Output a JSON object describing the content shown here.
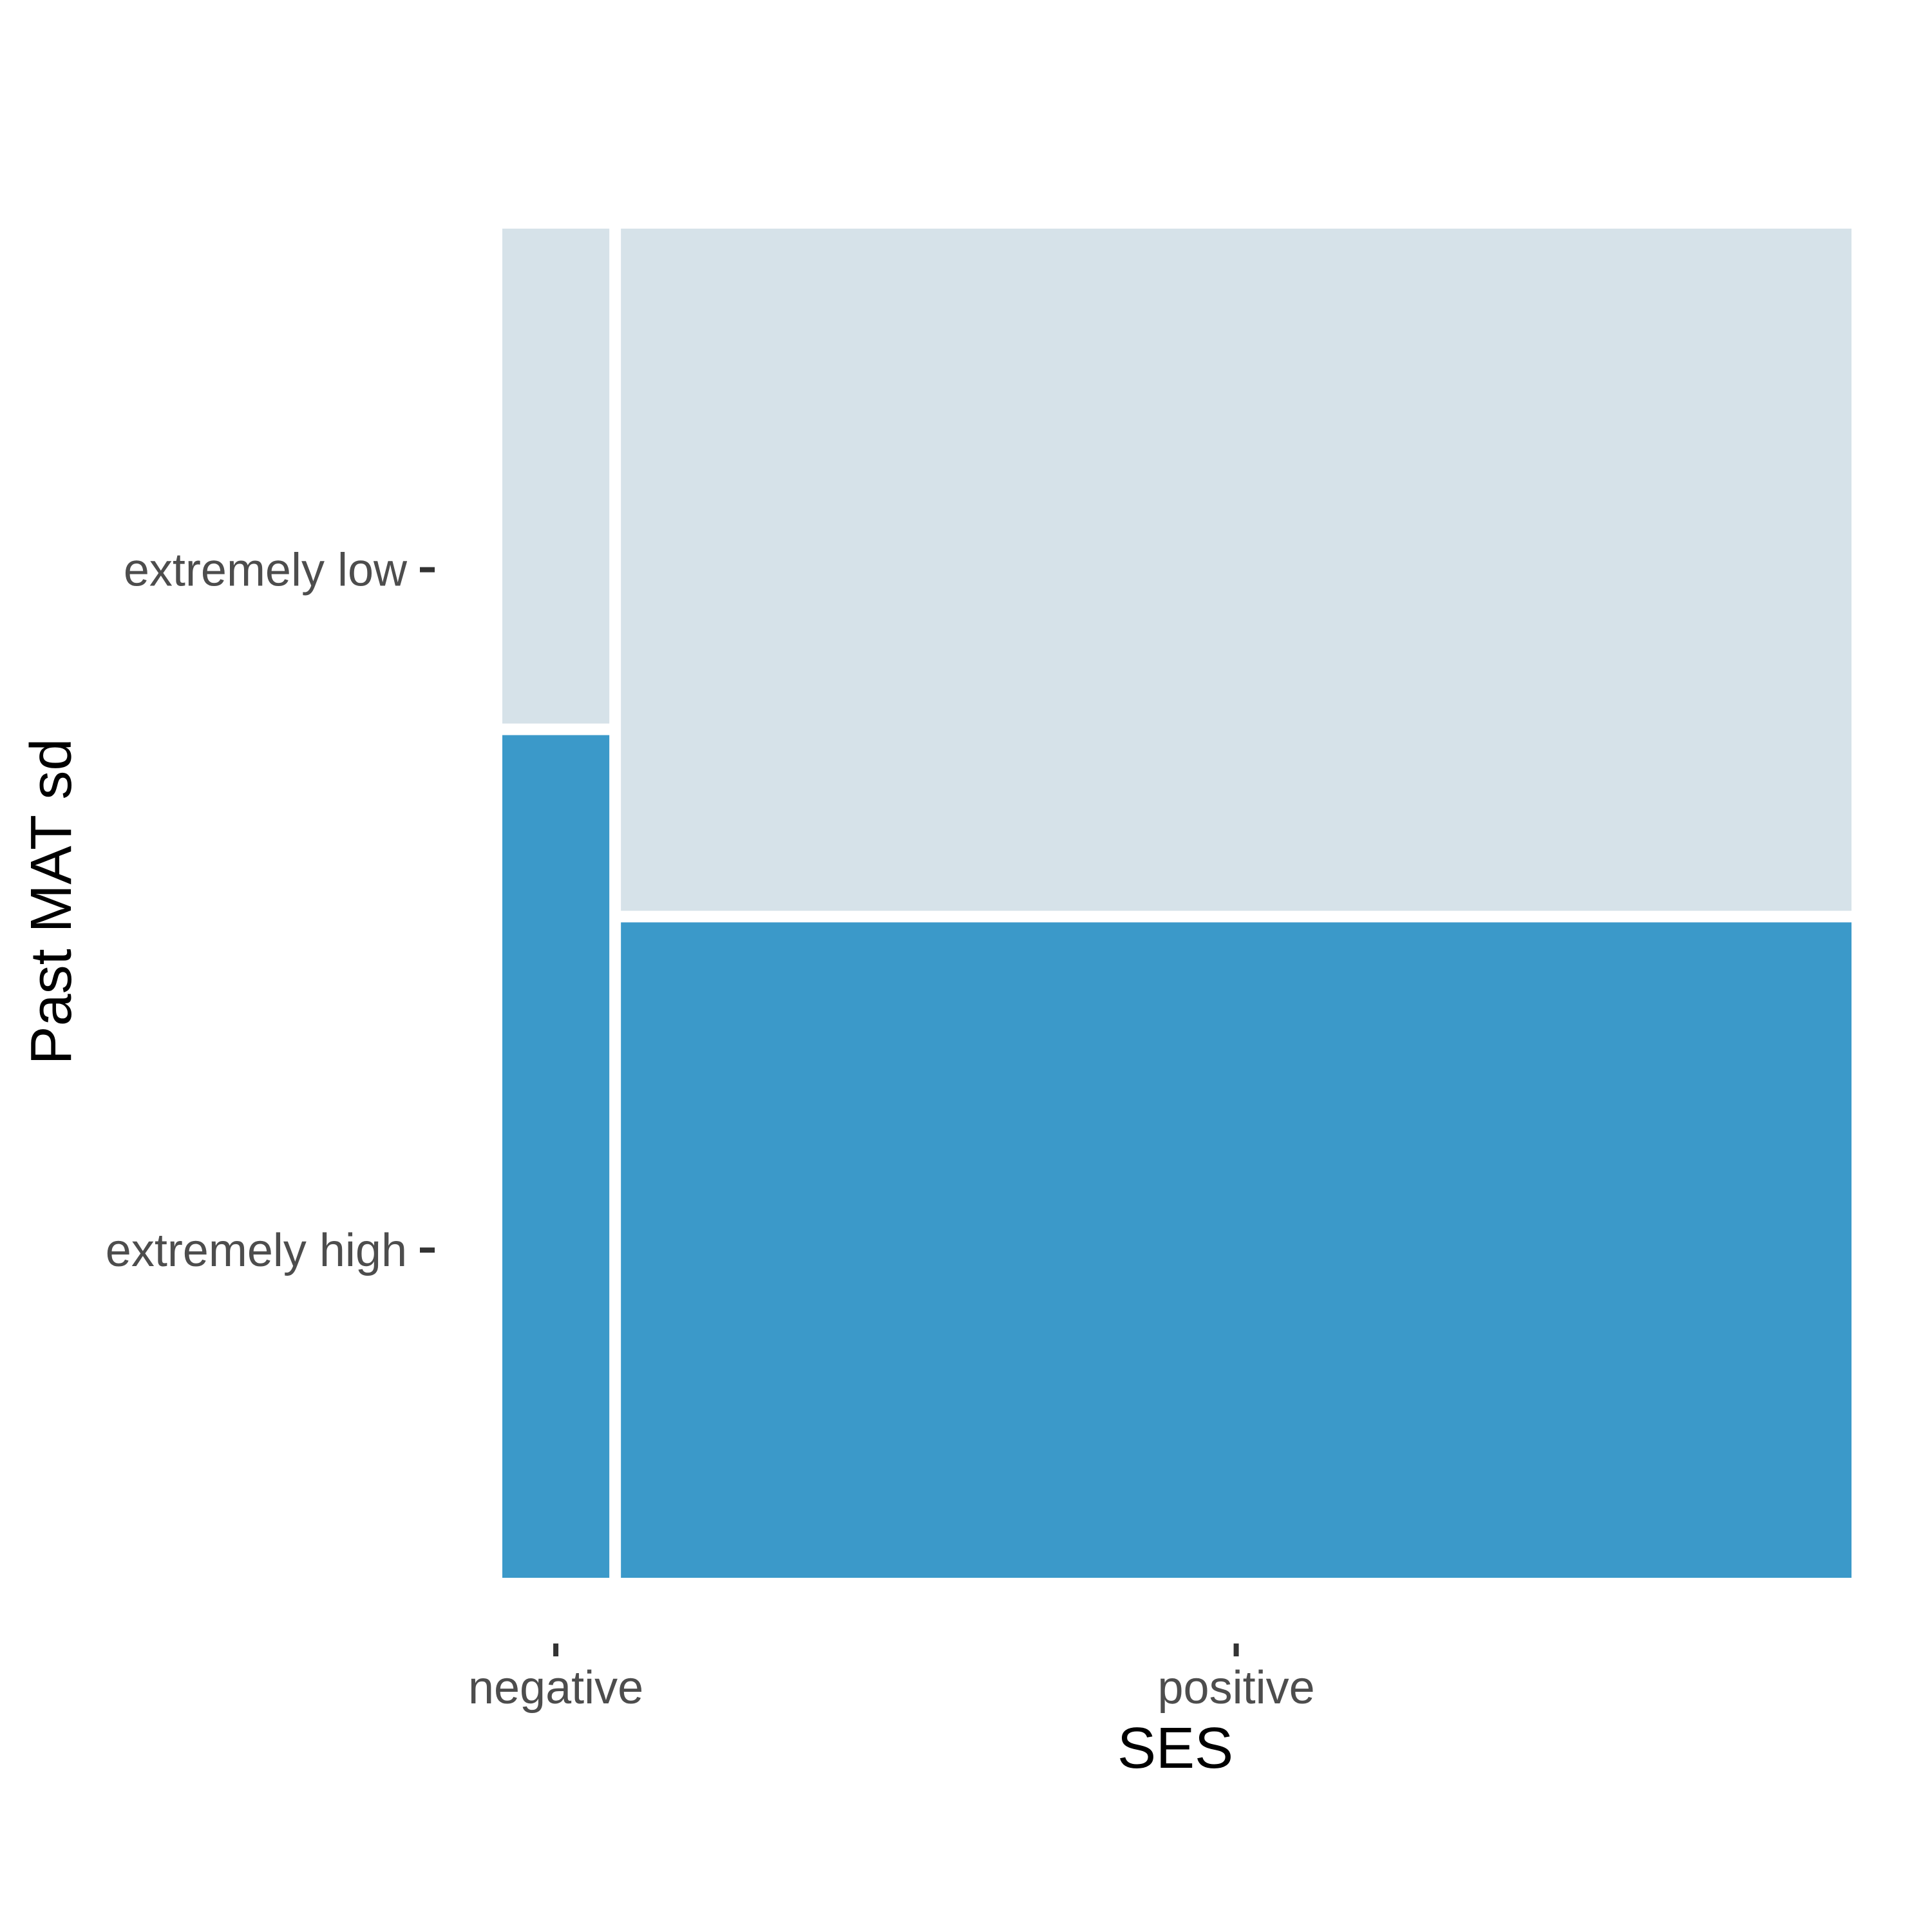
{
  "chart_data": {
    "type": "mosaic",
    "xlabel": "SES",
    "ylabel": "Past MAT sd",
    "x_categories": [
      "negative",
      "positive"
    ],
    "y_categories": [
      "extremely low",
      "extremely high"
    ],
    "column_proportions": [
      0.08,
      0.92
    ],
    "cells": [
      {
        "x": "negative",
        "y": "extremely low",
        "proportion": 0.37
      },
      {
        "x": "negative",
        "y": "extremely high",
        "proportion": 0.63
      },
      {
        "x": "positive",
        "y": "extremely low",
        "proportion": 0.51
      },
      {
        "x": "positive",
        "y": "extremely high",
        "proportion": 0.49
      }
    ],
    "colors": {
      "extremely low": "#d6e2e9",
      "extremely high": "#3b99c9"
    },
    "grid": false,
    "legend": "none"
  }
}
